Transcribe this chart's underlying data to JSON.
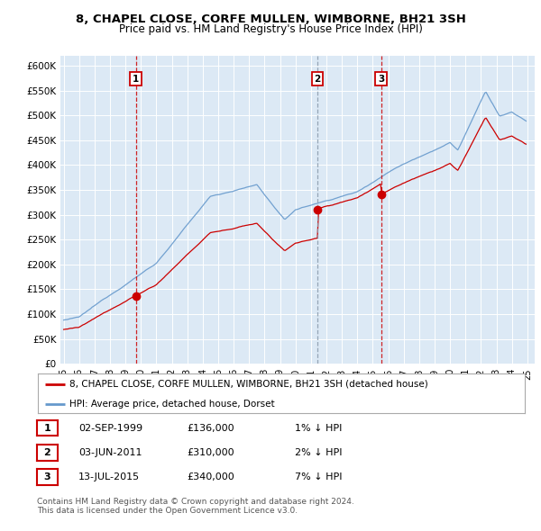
{
  "title": "8, CHAPEL CLOSE, CORFE MULLEN, WIMBORNE, BH21 3SH",
  "subtitle": "Price paid vs. HM Land Registry's House Price Index (HPI)",
  "plot_bg_color": "#dce9f5",
  "hpi_color": "#6699cc",
  "price_color": "#cc0000",
  "vline_colors": [
    "#cc0000",
    "#8899aa",
    "#cc0000"
  ],
  "transactions": [
    {
      "label": "1",
      "date": "02-SEP-1999",
      "price": 136000,
      "rel": "1% ↓ HPI",
      "year": 1999.667
    },
    {
      "label": "2",
      "date": "03-JUN-2011",
      "price": 310000,
      "rel": "2% ↓ HPI",
      "year": 2011.417
    },
    {
      "label": "3",
      "date": "13-JUL-2015",
      "price": 340000,
      "rel": "7% ↓ HPI",
      "year": 2015.542
    }
  ],
  "legend_label1": "8, CHAPEL CLOSE, CORFE MULLEN, WIMBORNE, BH21 3SH (detached house)",
  "legend_label2": "HPI: Average price, detached house, Dorset",
  "footer1": "Contains HM Land Registry data © Crown copyright and database right 2024.",
  "footer2": "This data is licensed under the Open Government Licence v3.0.",
  "ylim": [
    0,
    620000
  ],
  "yticks": [
    0,
    50000,
    100000,
    150000,
    200000,
    250000,
    300000,
    350000,
    400000,
    450000,
    500000,
    550000,
    600000
  ],
  "x_start_year": 1994.8,
  "x_end_year": 2025.5
}
